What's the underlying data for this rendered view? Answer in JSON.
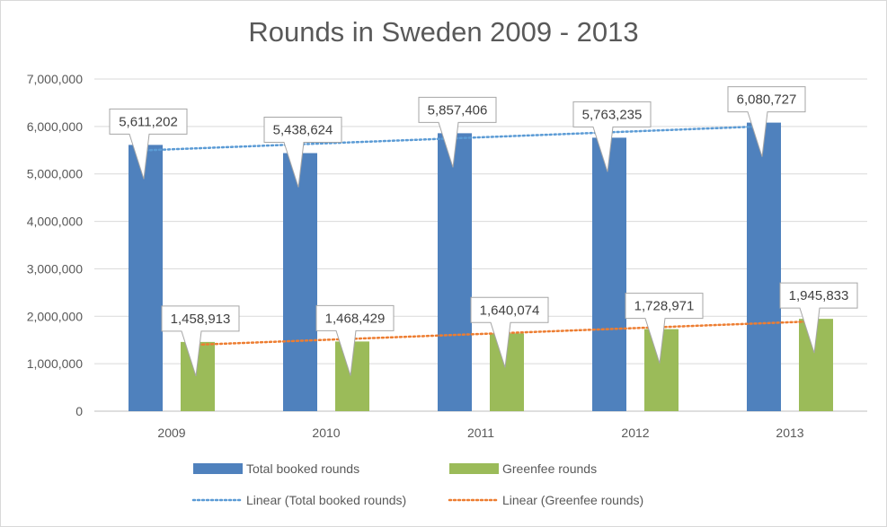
{
  "chart_data": {
    "type": "bar",
    "title": "Rounds in Sweden 2009 - 2013",
    "categories": [
      "2009",
      "2010",
      "2011",
      "2012",
      "2013"
    ],
    "series": [
      {
        "name": "Total booked rounds",
        "values": [
          5611202,
          5438624,
          5857406,
          5763235,
          6080727
        ],
        "labels": [
          "5,611,202",
          "5,438,624",
          "5,857,406",
          "5,763,235",
          "6,080,727"
        ],
        "color": "#4f81bd"
      },
      {
        "name": "Greenfee rounds",
        "values": [
          1458913,
          1468429,
          1640074,
          1728971,
          1945833
        ],
        "labels": [
          "1,458,913",
          "1,468,429",
          "1,640,074",
          "1,728,971",
          "1,945,833"
        ],
        "color": "#9bbb59"
      }
    ],
    "trendlines": [
      {
        "name": "Linear (Total booked rounds)",
        "series": 0,
        "type": "linear",
        "color": "#5b9bd5",
        "style": "dotted"
      },
      {
        "name": "Linear (Greenfee rounds)",
        "series": 1,
        "type": "linear",
        "color": "#ed7d31",
        "style": "dotted"
      }
    ],
    "ylim": [
      0,
      7000000
    ],
    "yticks": [
      0,
      1000000,
      2000000,
      3000000,
      4000000,
      5000000,
      6000000,
      7000000
    ],
    "ytick_labels": [
      "0",
      "1,000,000",
      "2,000,000",
      "3,000,000",
      "4,000,000",
      "5,000,000",
      "6,000,000",
      "7,000,000"
    ],
    "grid": true,
    "legend": "bottom",
    "xlabel": "",
    "ylabel": ""
  }
}
